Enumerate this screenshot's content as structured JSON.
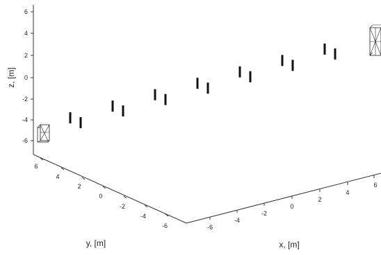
{
  "chart_data": {
    "type": "scatter3d",
    "xlabel": "x, [m]",
    "ylabel": "y, [m]",
    "zlabel": "z, [m]",
    "x_ticks": [
      "-6",
      "-4",
      "-2",
      "0",
      "2",
      "4",
      "6"
    ],
    "y_ticks": [
      "6",
      "4",
      "2",
      "0",
      "-2",
      "-4",
      "-6"
    ],
    "z_ticks": [
      "6",
      "4",
      "2",
      "0",
      "-2",
      "-4",
      "-6"
    ],
    "xlim": [
      -7,
      7
    ],
    "ylim": [
      -7,
      7
    ],
    "zlim": [
      -7,
      7
    ],
    "grid": false,
    "legend": "none",
    "marker_pairs": [
      {
        "x": -6,
        "z": -3.2
      },
      {
        "x": -4,
        "z": -2.2
      },
      {
        "x": -2,
        "z": -1.3
      },
      {
        "x": 0,
        "z": -0.4
      },
      {
        "x": 2,
        "z": 0.5
      },
      {
        "x": 4,
        "z": 1.4
      },
      {
        "x": 6,
        "z": 2.3
      }
    ],
    "end_boxes": [
      "left",
      "right"
    ]
  }
}
